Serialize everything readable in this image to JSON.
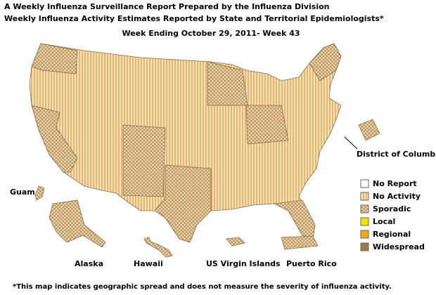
{
  "header": {
    "title": "A Weekly Influenza Surveillance Report Prepared by the Influenza Division",
    "subtitle": "Weekly Influenza Activity Estimates Reported by State and Territorial Epidemiologists*",
    "week": "Week Ending October 29, 2011- Week 43"
  },
  "labels": {
    "guam": "Guam",
    "alaska": "Alaska",
    "hawaii": "Hawaii",
    "usvi": "US Virgin Islands",
    "puerto_rico": "Puerto Rico",
    "dc": "District of Columbia"
  },
  "legend": [
    "No Report",
    "No Activity",
    "Sporadic",
    "Local",
    "Regional",
    "Widespread"
  ],
  "footnote": "*This map indicates geographic spread and does not measure the severity of influenza activity."
}
